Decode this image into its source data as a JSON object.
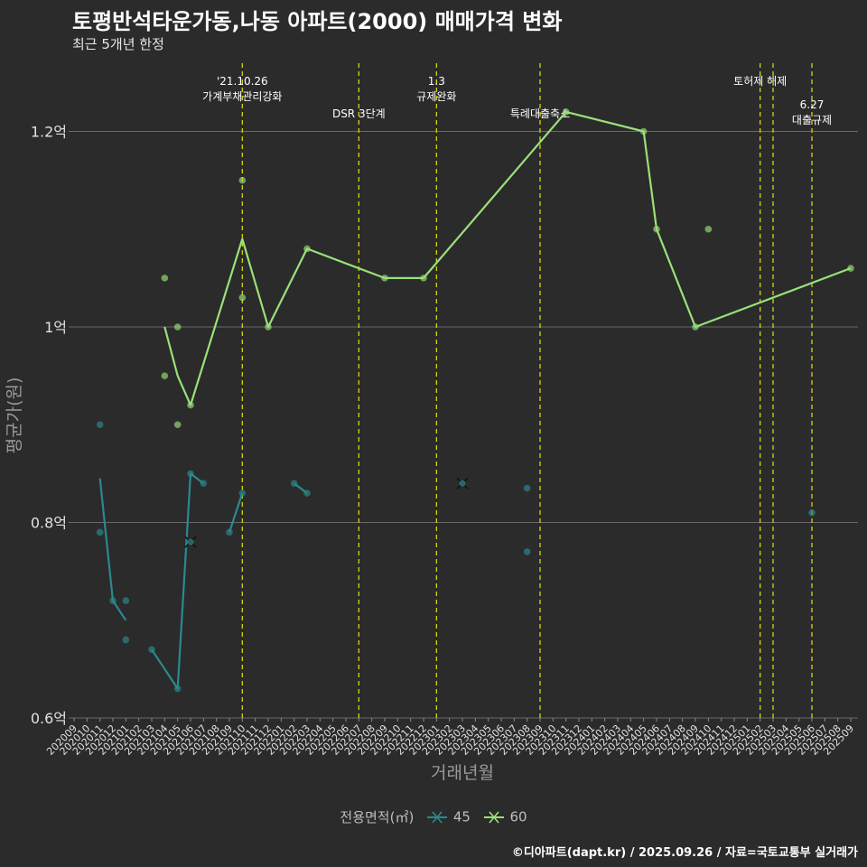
{
  "title": "토평반석타운가동,나동 아파트(2000) 매매가격 변화",
  "subtitle": "최근 5개년 한정",
  "caption": "©디아파트(dapt.kr) / 2025.09.26 / 자료=국토교통부 실거래가",
  "legend": {
    "title": "전용면적(㎡)",
    "items": [
      {
        "label": "45",
        "color": "#2a8a8f"
      },
      {
        "label": "60",
        "color": "#9be07a"
      }
    ]
  },
  "chart_data": {
    "type": "line",
    "xlabel": "거래년월",
    "ylabel": "평균가(원)",
    "ylim": [
      0.6,
      1.3
    ],
    "yticks": [
      0.6,
      0.8,
      1.0,
      1.2
    ],
    "ytick_labels": [
      "0.6억",
      "0.8억",
      "1억",
      "1.2억"
    ],
    "categories": [
      "202009",
      "202010",
      "202011",
      "202012",
      "202101",
      "202102",
      "202103",
      "202104",
      "202105",
      "202106",
      "202107",
      "202108",
      "202109",
      "202110",
      "202111",
      "202112",
      "202201",
      "202202",
      "202203",
      "202204",
      "202205",
      "202206",
      "202207",
      "202208",
      "202209",
      "202210",
      "202211",
      "202212",
      "202301",
      "202302",
      "202303",
      "202304",
      "202305",
      "202306",
      "202307",
      "202308",
      "202309",
      "202310",
      "202311",
      "202312",
      "202401",
      "202402",
      "202403",
      "202404",
      "202405",
      "202406",
      "202407",
      "202408",
      "202409",
      "202410",
      "202411",
      "202412",
      "202501",
      "202502",
      "202503",
      "202504",
      "202505",
      "202506",
      "202507",
      "202508",
      "202509"
    ],
    "events": [
      {
        "x": "202110",
        "label": "'21.10.26\n가계부채관리강화",
        "level": 1
      },
      {
        "x": "202207",
        "label": "DSR 3단계",
        "level": 2
      },
      {
        "x": "202301",
        "label": "1.3\n규제완화",
        "level": 1
      },
      {
        "x": "202309",
        "label": "특례대출축소",
        "level": 2
      },
      {
        "x": "202502",
        "label": "토허제 해제",
        "level": 1
      },
      {
        "x": "202503",
        "label": "",
        "level": 0
      },
      {
        "x": "202506",
        "label": "6.27\n대출규제",
        "level": 3
      }
    ],
    "series": [
      {
        "name": "45",
        "color": "#2a8a8f",
        "line_segments": [
          [
            [
              "202011",
              0.845
            ],
            [
              "202012",
              0.72
            ],
            [
              "202101",
              0.7
            ]
          ],
          [
            [
              "202103",
              0.67
            ],
            [
              "202105",
              0.63
            ],
            [
              "202106",
              0.85
            ],
            [
              "202107",
              0.84
            ]
          ],
          [
            [
              "202109",
              0.79
            ],
            [
              "202110",
              0.83
            ]
          ],
          [
            [
              "202202",
              0.84
            ],
            [
              "202203",
              0.83
            ]
          ]
        ],
        "points": [
          [
            "202011",
            0.9
          ],
          [
            "202011",
            0.79
          ],
          [
            "202012",
            0.72
          ],
          [
            "202101",
            0.72
          ],
          [
            "202101",
            0.68
          ],
          [
            "202103",
            0.67
          ],
          [
            "202105",
            0.63
          ],
          [
            "202106",
            0.85
          ],
          [
            "202107",
            0.84
          ],
          [
            "202109",
            0.79
          ],
          [
            "202110",
            0.83
          ],
          [
            "202202",
            0.84
          ],
          [
            "202203",
            0.83
          ],
          [
            "202308",
            0.835
          ],
          [
            "202308",
            0.77
          ],
          [
            "202506",
            0.81
          ]
        ],
        "x_marks": [
          [
            "202106",
            0.78
          ],
          [
            "202303",
            0.84
          ]
        ]
      },
      {
        "name": "60",
        "color": "#9be07a",
        "line_segments": [
          [
            [
              "202104",
              1.0
            ],
            [
              "202105",
              0.95
            ],
            [
              "202106",
              0.92
            ],
            [
              "202110",
              1.09
            ],
            [
              "202112",
              1.0
            ],
            [
              "202203",
              1.08
            ],
            [
              "202209",
              1.05
            ],
            [
              "202212",
              1.05
            ],
            [
              "202311",
              1.22
            ],
            [
              "202405",
              1.2
            ],
            [
              "202406",
              1.1
            ],
            [
              "202409",
              1.0
            ],
            [
              "202509",
              1.06
            ]
          ]
        ],
        "points": [
          [
            "202104",
            1.05
          ],
          [
            "202104",
            0.95
          ],
          [
            "202105",
            1.0
          ],
          [
            "202105",
            0.9
          ],
          [
            "202106",
            0.92
          ],
          [
            "202110",
            1.15
          ],
          [
            "202110",
            1.03
          ],
          [
            "202112",
            1.0
          ],
          [
            "202203",
            1.08
          ],
          [
            "202209",
            1.05
          ],
          [
            "202212",
            1.05
          ],
          [
            "202311",
            1.22
          ],
          [
            "202405",
            1.2
          ],
          [
            "202406",
            1.1
          ],
          [
            "202409",
            1.0
          ],
          [
            "202410",
            1.1
          ],
          [
            "202509",
            1.06
          ]
        ],
        "x_marks": []
      }
    ]
  }
}
